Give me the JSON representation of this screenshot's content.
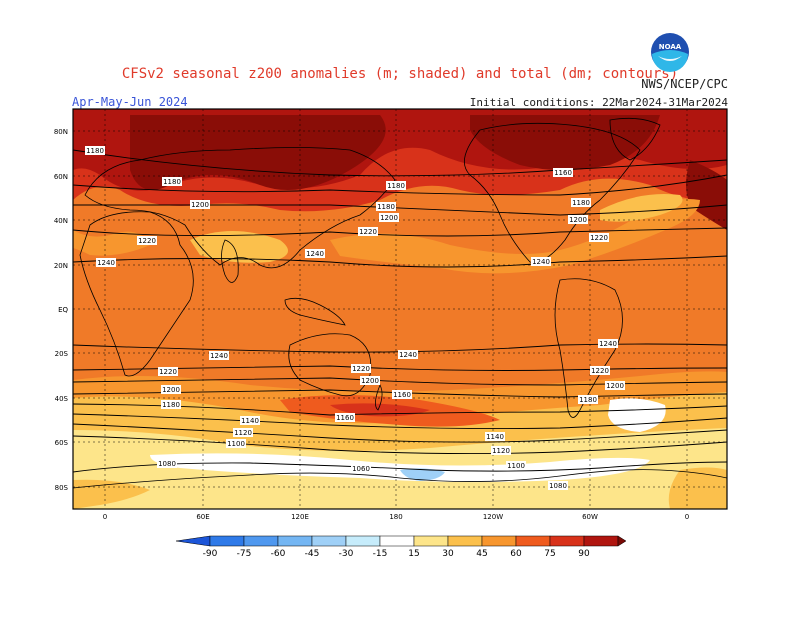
{
  "title": "CFSv2 seasonal z200 anomalies (m; shaded) and total (dm; contours)",
  "agency": "NWS/NCEP/CPC",
  "season": "Apr-May-Jun 2024",
  "initial_conditions": "Initial conditions: 22Mar2024-31Mar2024",
  "logo_text": "NOAA",
  "lat_labels": [
    "80N",
    "60N",
    "40N",
    "20N",
    "EQ",
    "20S",
    "40S",
    "60S",
    "80S"
  ],
  "lon_labels": [
    "0",
    "60E",
    "120E",
    "180",
    "120W",
    "60W",
    "0"
  ],
  "contour_levels": [
    "1180",
    "1180",
    "1200",
    "1220",
    "1240",
    "1180",
    "1180",
    "1200",
    "1220",
    "1240",
    "1160",
    "1180",
    "1200",
    "1220",
    "1240",
    "1240",
    "1220",
    "1200",
    "1180",
    "1140",
    "1120",
    "1100",
    "1080",
    "1240",
    "1220",
    "1200",
    "1160",
    "1240",
    "1220",
    "1200",
    "1180",
    "1160",
    "1140",
    "1120",
    "1100",
    "1060",
    "1080"
  ],
  "colorbar": {
    "labels": [
      "-90",
      "-75",
      "-60",
      "-45",
      "-30",
      "-15",
      "15",
      "30",
      "45",
      "60",
      "75",
      "90"
    ],
    "colors": [
      "#1c55d8",
      "#2f7ae8",
      "#4f98ef",
      "#74b6f3",
      "#9fd0f7",
      "#c6ecfb",
      "#ffffff",
      "#fde58a",
      "#fbc04c",
      "#f7962e",
      "#ef5b1e",
      "#d8321a",
      "#b0150f",
      "#7a0a05"
    ]
  }
}
